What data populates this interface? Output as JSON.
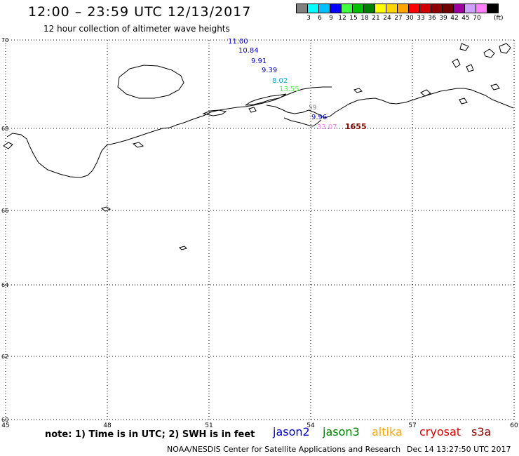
{
  "header": {
    "title": "12:00 – 23:59 UTC 12/13/2017",
    "subtitle": "12 hour collection of altimeter wave heights"
  },
  "colorbar": {
    "colors": [
      "#808080",
      "#00ffff",
      "#00bfff",
      "#0000ff",
      "#40ff40",
      "#00c000",
      "#008000",
      "#ffff00",
      "#ffd700",
      "#ffa500",
      "#ff0000",
      "#d00000",
      "#900000",
      "#700000",
      "#a000a0",
      "#d0a0ff",
      "#ff80ff",
      "#000000"
    ],
    "labels": [
      "3",
      "6",
      "9",
      "12",
      "15",
      "18",
      "21",
      "24",
      "27",
      "30",
      "33",
      "36",
      "39",
      "42",
      "45",
      "70"
    ],
    "unit": "(ft)"
  },
  "map": {
    "x_labels": [
      "45",
      "48",
      "51",
      "54",
      "57",
      "60"
    ],
    "y_labels": [
      "70",
      "68",
      "66",
      "64",
      "62",
      "60"
    ],
    "wave_labels": [
      {
        "text": "11.00",
        "color": "#0000cc"
      },
      {
        "text": "10.84",
        "color": "#0000cc"
      },
      {
        "text": "9.91",
        "color": "#0000cc"
      },
      {
        "text": "9.39",
        "color": "#0000cc"
      },
      {
        "text": "8.02",
        "color": "#00aadd"
      },
      {
        "text": "13.55",
        "color": "#40ff40"
      },
      {
        "text": "59",
        "color": "#808080"
      },
      {
        "text": "9.96",
        "color": "#0000cc"
      },
      {
        "text": "33.07",
        "color": "#ee82ee"
      },
      {
        "text": "1655",
        "color": "#800000"
      }
    ]
  },
  "footer": {
    "note": "note: 1) Time is in UTC; 2) SWH is in feet",
    "satellites": [
      {
        "name": "jason2",
        "color": "#0000cc"
      },
      {
        "name": "jason3",
        "color": "#008000"
      },
      {
        "name": "altika",
        "color": "#ffa500"
      },
      {
        "name": "cryosat",
        "color": "#e00000"
      },
      {
        "name": "s3a",
        "color": "#900000"
      }
    ],
    "credit": "NOAA/NESDIS Center for Satellite Applications and Research",
    "timestamp": "Dec 14 13:27:50 UTC 2017"
  }
}
